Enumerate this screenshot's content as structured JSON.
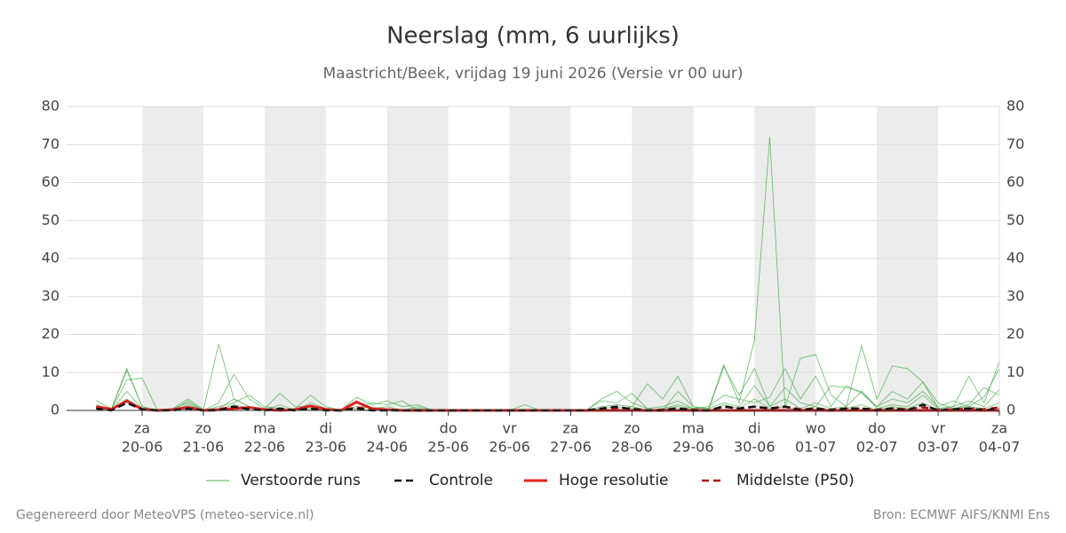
{
  "chart_data": {
    "type": "line",
    "title": "Neerslag (mm, 6 uurlijks)",
    "subtitle": "Maastricht/Beek, vrijdag 19 juni 2026 (Versie vr 00 uur)",
    "weekdays": [
      null,
      null,
      null,
      "za",
      null,
      null,
      null,
      "zo",
      null,
      null,
      null,
      "ma",
      null,
      null,
      null,
      "di",
      null,
      null,
      null,
      "wo",
      null,
      null,
      null,
      "do",
      null,
      null,
      null,
      "vr",
      null,
      null,
      null,
      "za",
      null,
      null,
      null,
      "zo",
      null,
      null,
      null,
      "ma",
      null,
      null,
      null,
      "di",
      null,
      null,
      null,
      "wo",
      null,
      null,
      null,
      "do",
      null,
      null,
      null,
      "vr",
      null,
      null,
      null,
      "za"
    ],
    "categories": [
      null,
      null,
      null,
      "20-06",
      null,
      null,
      null,
      "21-06",
      null,
      null,
      null,
      "22-06",
      null,
      null,
      null,
      "23-06",
      null,
      null,
      null,
      "24-06",
      null,
      null,
      null,
      "25-06",
      null,
      null,
      null,
      "26-06",
      null,
      null,
      null,
      "27-06",
      null,
      null,
      null,
      "28-06",
      null,
      null,
      null,
      "29-06",
      null,
      null,
      null,
      "30-06",
      null,
      null,
      null,
      "01-07",
      null,
      null,
      null,
      "02-07",
      null,
      null,
      null,
      "03-07",
      null,
      null,
      null,
      "04-07"
    ],
    "ylim": [
      0,
      80
    ],
    "yticks": [
      0,
      10,
      20,
      30,
      40,
      50,
      60,
      70,
      80
    ],
    "grid": true,
    "ensemble": {
      "name": "Verstoorde runs",
      "color": "#4caf50",
      "members": [
        [
          2.5,
          0.5,
          11,
          1,
          0,
          0.5,
          3,
          0.2,
          17.5,
          3,
          1,
          0.5,
          0,
          0.5,
          4,
          1,
          0,
          0.5,
          2,
          1.5,
          2.5,
          0,
          0,
          0,
          0,
          0,
          0,
          0,
          0,
          0,
          0,
          0,
          0,
          0,
          0,
          1,
          7,
          3,
          9,
          1,
          0.5,
          12,
          2,
          18.5,
          72,
          1,
          13.7,
          14.7,
          4,
          1,
          17,
          3,
          11.7,
          11,
          7.5,
          0.5,
          1,
          9,
          2,
          12.8
        ],
        [
          1.5,
          0.2,
          8,
          8.5,
          0,
          0,
          2.5,
          0,
          2,
          9.5,
          3,
          0.5,
          4.5,
          1,
          1,
          0.2,
          0,
          3.5,
          1.5,
          2.5,
          1,
          1.5,
          0,
          0,
          0,
          0,
          0,
          0,
          1.5,
          0,
          0,
          0,
          0,
          3,
          5,
          2,
          0.5,
          0,
          5,
          1,
          0,
          11.5,
          4,
          11,
          1,
          6,
          2,
          1,
          6.5,
          6,
          5,
          1,
          5,
          3,
          7.5,
          2,
          0.5,
          1.5,
          6,
          4
        ],
        [
          1,
          0.3,
          10.5,
          1,
          0,
          0.5,
          2,
          0,
          1,
          2,
          4,
          1,
          0.5,
          0,
          2,
          0.5,
          0,
          2,
          0.5,
          1,
          0,
          1,
          0,
          0,
          0,
          0,
          0,
          0,
          0,
          0,
          0,
          0,
          0,
          2.5,
          2,
          4.5,
          0.5,
          1,
          2.5,
          0.5,
          1,
          4,
          3,
          2,
          3.5,
          11,
          3,
          9,
          1,
          6.5,
          4.5,
          1,
          3,
          2,
          5,
          1,
          2.5,
          1,
          3.5,
          11
        ],
        [
          0.5,
          0,
          5,
          0.5,
          0,
          0,
          1.5,
          0,
          0.5,
          3,
          1,
          0,
          1.5,
          0,
          1,
          0,
          0,
          1,
          0.5,
          0.3,
          0,
          0.5,
          0,
          0,
          0,
          0,
          0,
          0,
          0,
          0,
          0,
          0,
          0,
          1,
          1.5,
          1,
          0,
          0.5,
          1.5,
          0.5,
          0.5,
          2,
          1,
          6.5,
          1,
          3,
          0.5,
          2,
          0.5,
          1,
          5,
          0.5,
          1.5,
          1,
          4,
          0.5,
          1,
          2.5,
          1,
          5.5
        ],
        [
          1,
          0.2,
          3,
          0.3,
          0,
          0.3,
          1,
          0,
          0.3,
          1.5,
          0.5,
          0,
          0.5,
          0,
          0.5,
          0,
          0,
          0.5,
          0,
          0,
          0,
          0,
          0,
          0,
          0,
          0,
          0,
          0,
          0,
          0,
          0,
          0,
          0,
          0.5,
          1,
          0.5,
          0,
          0.3,
          1,
          0.3,
          0,
          1.5,
          0.5,
          3,
          0.5,
          1,
          0,
          1,
          0,
          0.5,
          1.5,
          0,
          1,
          0.5,
          2,
          0,
          0.5,
          1,
          0.5,
          2
        ]
      ]
    },
    "series": [
      {
        "name": "Controle",
        "color": "#111111",
        "dashed": true,
        "values": [
          0.5,
          0,
          2,
          0.3,
          0,
          0,
          0.5,
          0,
          0,
          1,
          0.3,
          0,
          0.5,
          0,
          0.5,
          0,
          0,
          0.5,
          0,
          0,
          0,
          0,
          0,
          0,
          0,
          0,
          0,
          0,
          0,
          0,
          0,
          0,
          0,
          0.5,
          1,
          0.3,
          0,
          0,
          0.5,
          0,
          0,
          1,
          0.5,
          1,
          0.5,
          1,
          0,
          0.5,
          0,
          0.5,
          0.5,
          0,
          0.5,
          0,
          1.5,
          0,
          0.3,
          0.5,
          0,
          0.5
        ]
      },
      {
        "name": "Hoge resolutie",
        "color": "#dd2222",
        "dashed": false,
        "values": [
          1,
          0.3,
          2.5,
          0.3,
          0,
          0.2,
          0.8,
          0,
          0.2,
          0.5,
          0.8,
          0.2,
          0,
          0.2,
          1.2,
          0.3,
          0,
          2.2,
          0.5,
          0.2,
          0,
          0,
          0,
          0,
          0,
          0,
          0,
          0,
          0,
          0,
          0,
          0,
          0,
          0,
          0,
          0,
          0,
          0,
          0,
          0,
          0,
          0,
          0,
          0,
          0,
          0,
          0,
          0,
          0,
          0,
          0,
          0,
          0,
          0,
          0,
          0,
          0,
          0,
          0,
          0
        ]
      },
      {
        "name": "Middelste (P50)",
        "color": "#aa1111",
        "dashed": true,
        "values": [
          0.8,
          0.2,
          2,
          0.3,
          0,
          0.2,
          0.8,
          0,
          0.3,
          1,
          0.5,
          0.2,
          0.3,
          0,
          0.5,
          0.2,
          0,
          0.8,
          0.2,
          0.2,
          0,
          0,
          0,
          0,
          0,
          0,
          0,
          0,
          0,
          0,
          0,
          0,
          0,
          0.3,
          0.5,
          0.5,
          0,
          0.2,
          0.5,
          0.2,
          0,
          1,
          0.5,
          1,
          0.5,
          1,
          0.3,
          0.5,
          0.2,
          0.5,
          0.5,
          0.2,
          0.5,
          0.3,
          0.8,
          0.2,
          0.3,
          0.5,
          0.3,
          0.8
        ]
      }
    ],
    "footer_left": "Gegenereerd door MeteoVPS (meteo-service.nl)",
    "footer_right": "Bron: ECMWF AIFS/KNMI Ens"
  }
}
